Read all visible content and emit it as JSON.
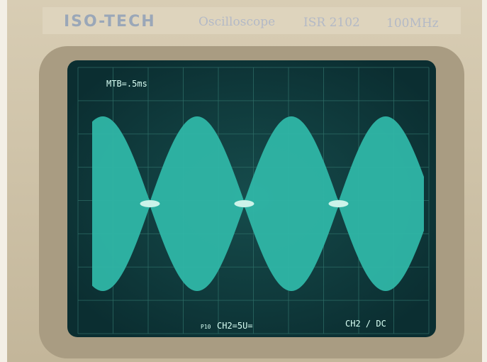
{
  "header": {
    "brand": "ISO-TECH",
    "product": "Oscilloscope",
    "model": "ISR 2102",
    "bandwidth": "100MHz"
  },
  "screen": {
    "timebase": "MTB=.5ms",
    "probe": "P10",
    "channel_scale": "CH2=5U=",
    "coupling": "CH2 / DC"
  }
}
